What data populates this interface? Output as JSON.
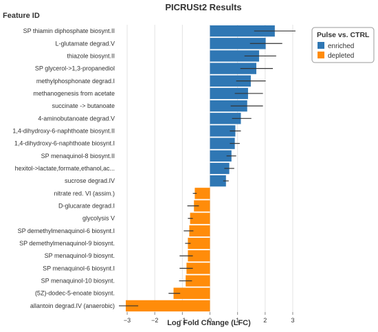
{
  "chart_data": {
    "type": "bar",
    "orientation": "horizontal",
    "title": "PICRUSt2 Results",
    "ylabel": "Feature ID",
    "xlabel": "Log Fold Change (LFC)",
    "xlim": [
      -3.3,
      3.35
    ],
    "xticks": [
      -3,
      -2,
      -1,
      0,
      1,
      2,
      3
    ],
    "grid": true,
    "legend": {
      "title": "Pulse vs. CTRL",
      "position": "top-right",
      "entries": [
        {
          "label": "enriched",
          "color": "#2f77b4"
        },
        {
          "label": "depleted",
          "color": "#ff8c0a"
        }
      ]
    },
    "categories": [
      "SP thiamin diphosphate biosynt.II",
      "L-glutamate degrad.V",
      "thiazole biosynt.II",
      "SP glycerol->1,3-propanediol",
      "methylphosphonate degrad.I",
      "methanogenesis from acetate",
      "succinate -> butanoate",
      "4-aminobutanoate degrad.V",
      "1,4-dihydroxy-6-naphthoate biosynt.II",
      "1,4-dihydroxy-6-naphthoate biosynt.I",
      "SP menaquinol-8 biosynt.II",
      "hexitol->lactate,formate,ethanol,ac...",
      "sucrose degrad.IV",
      "nitrate red. VI (assim.)",
      "D-glucarate degrad.I",
      "glycolysis V",
      "SP demethylmenaquinol-6 biosynt.I",
      "SP demethylmenaquinol-9 biosynt.",
      "SP menaquinol-9 biosynt.",
      "SP menaquinol-6 biosynt.I",
      "SP menaquinol-10 biosynt.",
      "(5Z)-dodec-5-enoate biosynt.",
      "allantoin degrad.IV (anaerobic)"
    ],
    "values": [
      2.35,
      2.02,
      1.78,
      1.68,
      1.48,
      1.38,
      1.35,
      1.12,
      0.92,
      0.9,
      0.78,
      0.7,
      0.58,
      -0.55,
      -0.58,
      -0.72,
      -0.75,
      -0.8,
      -0.8,
      -0.85,
      -0.88,
      -1.32,
      -3.05
    ],
    "error_low": [
      1.6,
      1.45,
      1.25,
      1.1,
      0.95,
      0.9,
      0.75,
      0.8,
      0.72,
      0.72,
      0.6,
      0.52,
      0.48,
      -0.62,
      -0.82,
      -0.8,
      -0.95,
      -0.9,
      -1.1,
      -1.1,
      -1.12,
      -1.5,
      -3.3
    ],
    "error_high": [
      3.1,
      2.62,
      2.4,
      2.28,
      2.02,
      1.92,
      1.92,
      1.5,
      1.12,
      1.08,
      0.95,
      0.88,
      0.68,
      -0.48,
      -0.4,
      -0.62,
      -0.6,
      -0.7,
      -0.62,
      -0.62,
      -0.65,
      -1.08,
      -2.6
    ],
    "groups": [
      "enriched",
      "enriched",
      "enriched",
      "enriched",
      "enriched",
      "enriched",
      "enriched",
      "enriched",
      "enriched",
      "enriched",
      "enriched",
      "enriched",
      "enriched",
      "depleted",
      "depleted",
      "depleted",
      "depleted",
      "depleted",
      "depleted",
      "depleted",
      "depleted",
      "depleted",
      "depleted"
    ]
  }
}
